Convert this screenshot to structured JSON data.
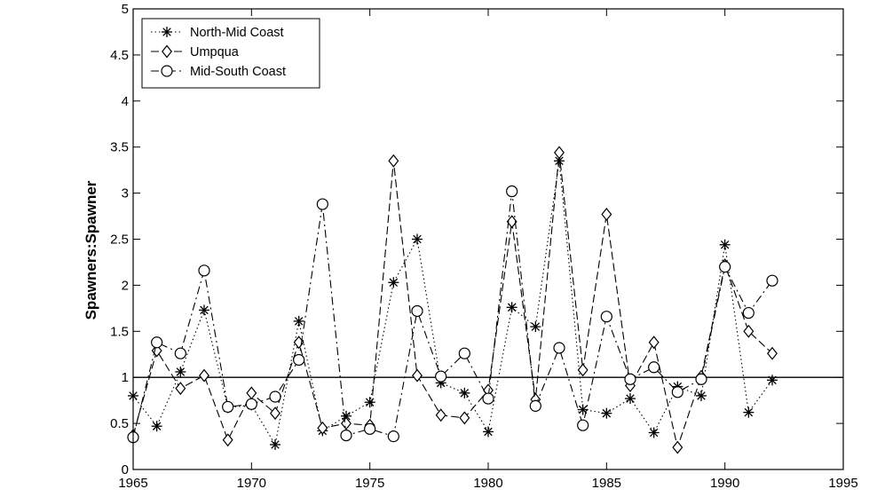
{
  "chart_data": {
    "type": "line",
    "title": "",
    "xlabel": "",
    "ylabel": "Spawners:Spawner",
    "xlim": [
      1965,
      1995
    ],
    "ylim": [
      0,
      5
    ],
    "xticks": [
      1965,
      1970,
      1975,
      1980,
      1985,
      1990,
      1995
    ],
    "yticks": [
      0,
      0.5,
      1,
      1.5,
      2,
      2.5,
      3,
      3.5,
      4,
      4.5,
      5
    ],
    "xtick_labels": [
      "1965",
      "1970",
      "1975",
      "1980",
      "1985",
      "1990",
      "1995"
    ],
    "ytick_labels": [
      "0",
      "0.5",
      "1",
      "1.5",
      "2",
      "2.5",
      "3",
      "3.5",
      "4",
      "4.5",
      "5"
    ],
    "grid": false,
    "legend_position": "top-left",
    "reference_line": 1,
    "x": [
      1965,
      1966,
      1967,
      1968,
      1969,
      1970,
      1971,
      1972,
      1973,
      1974,
      1975,
      1976,
      1977,
      1978,
      1979,
      1980,
      1981,
      1982,
      1983,
      1984,
      1985,
      1986,
      1987,
      1988,
      1989,
      1990,
      1991,
      1992
    ],
    "series": [
      {
        "name": "North-Mid Coast",
        "marker": "asterisk",
        "line_style": "dotted",
        "values": [
          0.8,
          0.47,
          1.06,
          1.73,
          0.67,
          0.7,
          0.27,
          1.61,
          0.42,
          0.58,
          0.73,
          2.03,
          2.5,
          0.94,
          0.83,
          0.41,
          1.76,
          1.55,
          3.35,
          0.65,
          0.61,
          0.77,
          0.4,
          0.9,
          0.8,
          2.44,
          0.62,
          0.97
        ]
      },
      {
        "name": "Umpqua",
        "marker": "diamond",
        "line_style": "dashed",
        "values": [
          0.37,
          1.29,
          0.88,
          1.02,
          0.32,
          0.83,
          0.61,
          1.38,
          0.45,
          0.5,
          0.48,
          3.35,
          1.02,
          0.59,
          0.56,
          0.86,
          2.69,
          0.76,
          3.44,
          1.08,
          2.77,
          0.91,
          1.38,
          0.24,
          1.01,
          2.22,
          1.5,
          1.26
        ]
      },
      {
        "name": "Mid-South Coast",
        "marker": "circle",
        "line_style": "dash-dot",
        "values": [
          0.35,
          1.38,
          1.26,
          2.16,
          0.68,
          0.71,
          0.79,
          1.19,
          2.88,
          0.37,
          0.44,
          0.36,
          1.72,
          1.01,
          1.26,
          0.77,
          3.02,
          0.69,
          1.32,
          0.48,
          1.66,
          0.98,
          1.11,
          0.84,
          0.98,
          2.2,
          1.7,
          2.05
        ]
      }
    ]
  }
}
